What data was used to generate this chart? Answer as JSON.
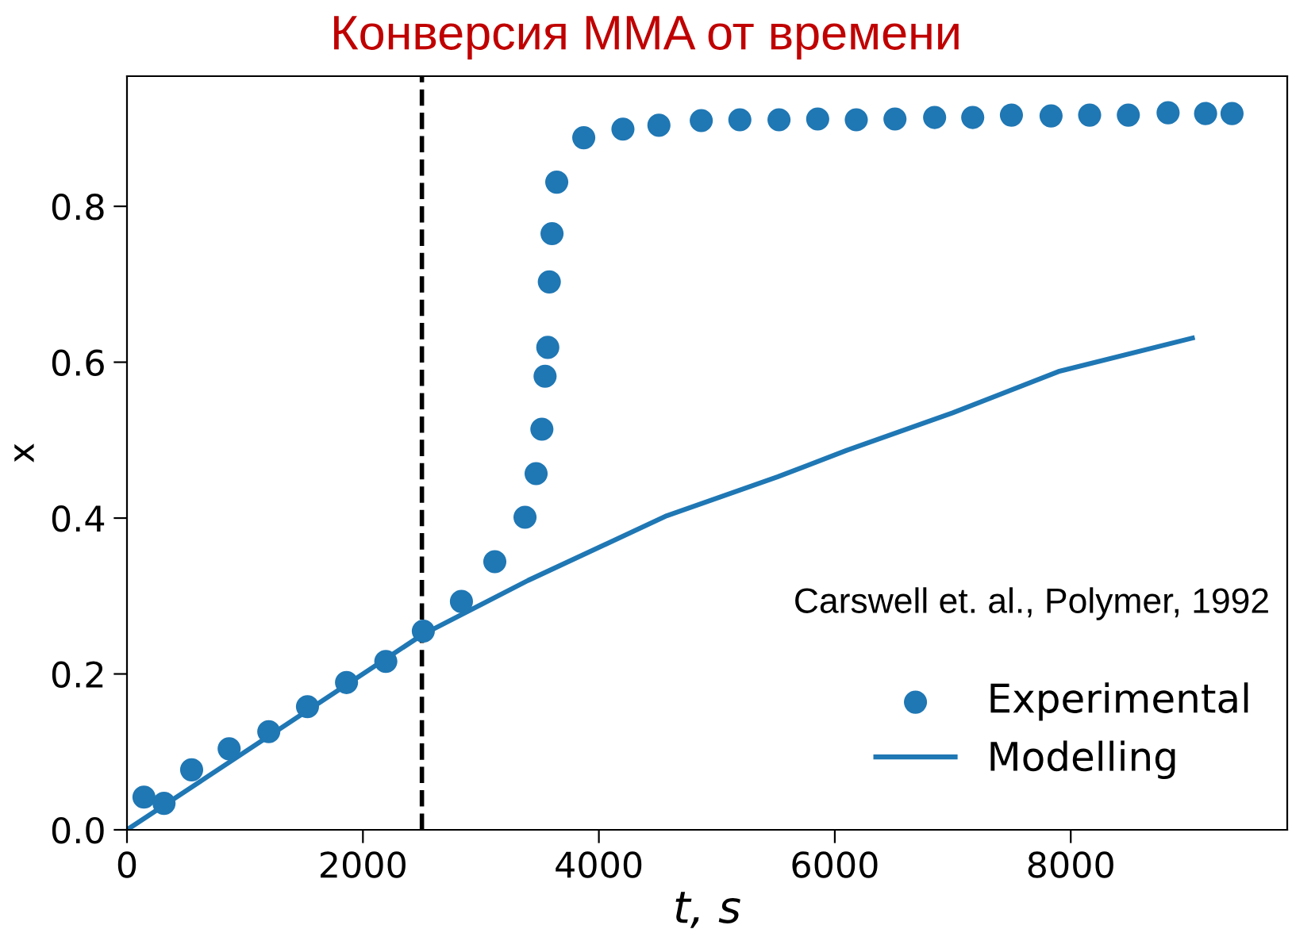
{
  "chart_data": {
    "type": "scatter",
    "title": "Конверсия MMA от времени",
    "xlabel": "t, s",
    "ylabel": "x",
    "xlim": [
      0,
      9835
    ],
    "ylim": [
      0,
      0.967
    ],
    "xticks": [
      0,
      2000,
      4000,
      6000,
      8000
    ],
    "yticks": [
      {
        "value": 0,
        "label": "0.0"
      },
      0.2,
      0.4,
      0.6,
      0.8
    ],
    "grid": false,
    "legend": "bottom right",
    "annotations": [
      "Carswell et. al., Polymer, 1992"
    ],
    "ref_lines": [
      {
        "axis": "x",
        "value": 2500,
        "color": "#000000",
        "line_style": "dashed"
      }
    ],
    "series": [
      {
        "name": "Experimental",
        "marker": "circle",
        "color": "#1f77b4",
        "x": [
          144,
          314,
          548,
          866,
          1202,
          1530,
          1861,
          2194,
          2512,
          2835,
          3118,
          3374,
          3468,
          3517,
          3544,
          3567,
          3580,
          3603,
          3643,
          3872,
          4204,
          4509,
          4868,
          5195,
          5527,
          5855,
          6182,
          6510,
          6846,
          7169,
          7497,
          7833,
          8160,
          8488,
          8825,
          9143,
          9367
        ],
        "values": [
          0.042,
          0.034,
          0.077,
          0.104,
          0.126,
          0.158,
          0.189,
          0.216,
          0.255,
          0.293,
          0.344,
          0.401,
          0.457,
          0.514,
          0.582,
          0.619,
          0.703,
          0.765,
          0.831,
          0.888,
          0.899,
          0.904,
          0.91,
          0.911,
          0.911,
          0.912,
          0.911,
          0.912,
          0.914,
          0.914,
          0.917,
          0.916,
          0.917,
          0.917,
          0.92,
          0.919,
          0.919
        ]
      },
      {
        "name": "Modelling",
        "type": "line",
        "marker": "none",
        "line_style": "solid",
        "color": "#1f77b4",
        "x": [
          0,
          1000,
          2000,
          2500,
          3400,
          4576,
          5518,
          6101,
          6999,
          7896,
          9031
        ],
        "values": [
          0,
          0.1,
          0.2,
          0.25,
          0.32,
          0.403,
          0.453,
          0.487,
          0.535,
          0.588,
          0.631
        ]
      }
    ]
  }
}
